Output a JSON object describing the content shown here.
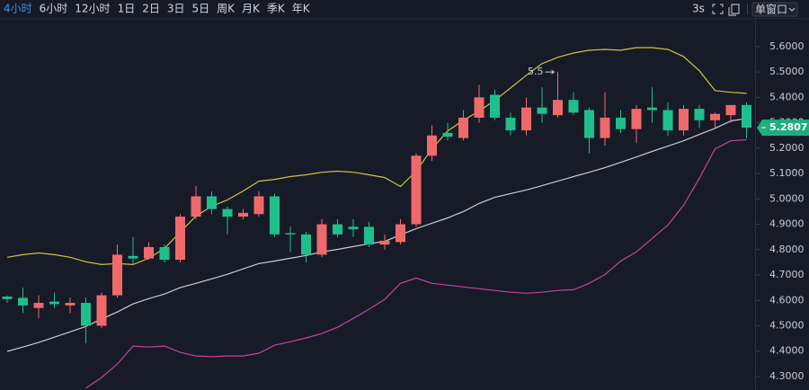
{
  "toolbar": {
    "intervals": [
      "4小时",
      "6小时",
      "12小时",
      "1日",
      "2日",
      "3日",
      "5日",
      "周K",
      "月K",
      "季K",
      "年K"
    ],
    "active": 0,
    "refresh": "3s",
    "window_mode": "单窗口"
  },
  "chart_data": {
    "type": "candlestick",
    "open": [
      4.615,
      4.61,
      4.57,
      4.595,
      4.58,
      4.59,
      4.5,
      4.62,
      4.775,
      4.765,
      4.81,
      4.76,
      4.93,
      5.01,
      4.96,
      4.93,
      4.94,
      5.01,
      4.865,
      4.86,
      4.78,
      4.9,
      4.89,
      4.89,
      4.82,
      4.83,
      4.9,
      5.17,
      5.26,
      5.24,
      5.32,
      5.41,
      5.32,
      5.27,
      5.36,
      5.33,
      5.39,
      5.35,
      5.24,
      5.32,
      5.275,
      5.36,
      5.35,
      5.27,
      5.355,
      5.31,
      5.33,
      5.37
    ],
    "high": [
      4.62,
      4.65,
      4.62,
      4.63,
      4.61,
      4.61,
      4.63,
      4.82,
      4.85,
      4.83,
      4.82,
      4.94,
      5.05,
      5.03,
      4.97,
      4.96,
      5.03,
      5.02,
      4.89,
      4.87,
      4.92,
      4.92,
      4.92,
      4.91,
      4.86,
      4.92,
      5.18,
      5.29,
      5.3,
      5.35,
      5.45,
      5.43,
      5.34,
      5.4,
      5.44,
      5.5,
      5.42,
      5.36,
      5.42,
      5.35,
      5.37,
      5.44,
      5.38,
      5.37,
      5.37,
      5.34,
      5.37,
      5.38
    ],
    "low": [
      4.59,
      4.55,
      4.53,
      4.57,
      4.55,
      4.43,
      4.49,
      4.61,
      4.74,
      4.76,
      4.75,
      4.75,
      4.92,
      4.94,
      4.86,
      4.92,
      4.93,
      4.85,
      4.79,
      4.75,
      4.77,
      4.85,
      4.85,
      4.81,
      4.8,
      4.82,
      4.89,
      5.15,
      5.23,
      5.23,
      5.3,
      5.31,
      5.25,
      5.25,
      5.3,
      5.32,
      5.33,
      5.18,
      5.21,
      5.26,
      5.22,
      5.3,
      5.25,
      5.25,
      5.28,
      5.28,
      5.3,
      5.24
    ],
    "close": [
      4.605,
      4.58,
      4.59,
      4.585,
      4.59,
      4.5,
      4.62,
      4.78,
      4.765,
      4.81,
      4.76,
      4.93,
      5.01,
      4.96,
      4.93,
      4.945,
      5.01,
      4.86,
      4.86,
      4.78,
      4.9,
      4.86,
      4.88,
      4.82,
      4.835,
      4.9,
      5.17,
      5.25,
      5.245,
      5.32,
      5.4,
      5.32,
      5.27,
      5.36,
      5.335,
      5.39,
      5.34,
      5.24,
      5.32,
      5.275,
      5.355,
      5.35,
      5.27,
      5.355,
      5.31,
      5.335,
      5.37,
      5.2807
    ],
    "up_color": "#f0696a",
    "down_color": "#1fbf8c",
    "bands": {
      "upper": {
        "color": "#cfc33c",
        "values": [
          4.77,
          4.78,
          4.787,
          4.78,
          4.77,
          4.752,
          4.741,
          4.745,
          4.741,
          4.766,
          4.805,
          4.869,
          4.932,
          4.971,
          4.996,
          5.031,
          5.07,
          5.077,
          5.088,
          5.095,
          5.105,
          5.109,
          5.105,
          5.095,
          5.084,
          5.049,
          5.109,
          5.197,
          5.268,
          5.31,
          5.346,
          5.388,
          5.437,
          5.487,
          5.533,
          5.558,
          5.575,
          5.586,
          5.589,
          5.586,
          5.596,
          5.596,
          5.589,
          5.561,
          5.505,
          5.427,
          5.42,
          5.416
        ]
      },
      "middle": {
        "color": "#c9cbd4",
        "values": [
          4.399,
          4.416,
          4.434,
          4.455,
          4.476,
          4.497,
          4.526,
          4.554,
          4.586,
          4.607,
          4.625,
          4.65,
          4.667,
          4.685,
          4.703,
          4.724,
          4.745,
          4.755,
          4.766,
          4.777,
          4.791,
          4.801,
          4.812,
          4.823,
          4.833,
          4.858,
          4.883,
          4.904,
          4.925,
          4.95,
          4.982,
          5.006,
          5.021,
          5.035,
          5.052,
          5.07,
          5.088,
          5.105,
          5.123,
          5.144,
          5.165,
          5.187,
          5.208,
          5.229,
          5.254,
          5.278,
          5.307,
          5.317
        ]
      },
      "lower": {
        "color": "#c2449a",
        "values": [
          null,
          null,
          null,
          null,
          null,
          4.254,
          4.296,
          4.349,
          4.42,
          4.416,
          4.42,
          4.395,
          4.381,
          4.378,
          4.381,
          4.381,
          4.392,
          4.423,
          4.437,
          4.452,
          4.469,
          4.494,
          4.529,
          4.565,
          4.604,
          4.667,
          4.688,
          4.667,
          4.66,
          4.653,
          4.646,
          4.639,
          4.632,
          4.628,
          4.632,
          4.639,
          4.642,
          4.667,
          4.702,
          4.755,
          4.791,
          4.844,
          4.897,
          4.975,
          5.081,
          5.197,
          5.229,
          5.233
        ]
      }
    },
    "annotation": {
      "text": "5.5",
      "index": 35
    },
    "current_price": 5.2807,
    "ylim": [
      4.2467,
      5.7095
    ],
    "yticks": [
      {
        "value": 4.3,
        "label": "4.3000"
      },
      {
        "value": 4.4,
        "label": "4.4000"
      },
      {
        "value": 4.5,
        "label": "4.5000"
      },
      {
        "value": 4.6,
        "label": "4.6000"
      },
      {
        "value": 4.7,
        "label": "4.7000"
      },
      {
        "value": 4.8,
        "label": "4.8000"
      },
      {
        "value": 4.9,
        "label": "4.9000"
      },
      {
        "value": 5.0,
        "label": "5.0000"
      },
      {
        "value": 5.1,
        "label": "5.1000"
      },
      {
        "value": 5.2,
        "label": "5.2000"
      },
      {
        "value": 5.3,
        "label": "5.3000"
      },
      {
        "value": 5.4,
        "label": "5.4000"
      },
      {
        "value": 5.5,
        "label": "5.5000"
      },
      {
        "value": 5.6,
        "label": "5.6000"
      }
    ],
    "grid": false
  }
}
